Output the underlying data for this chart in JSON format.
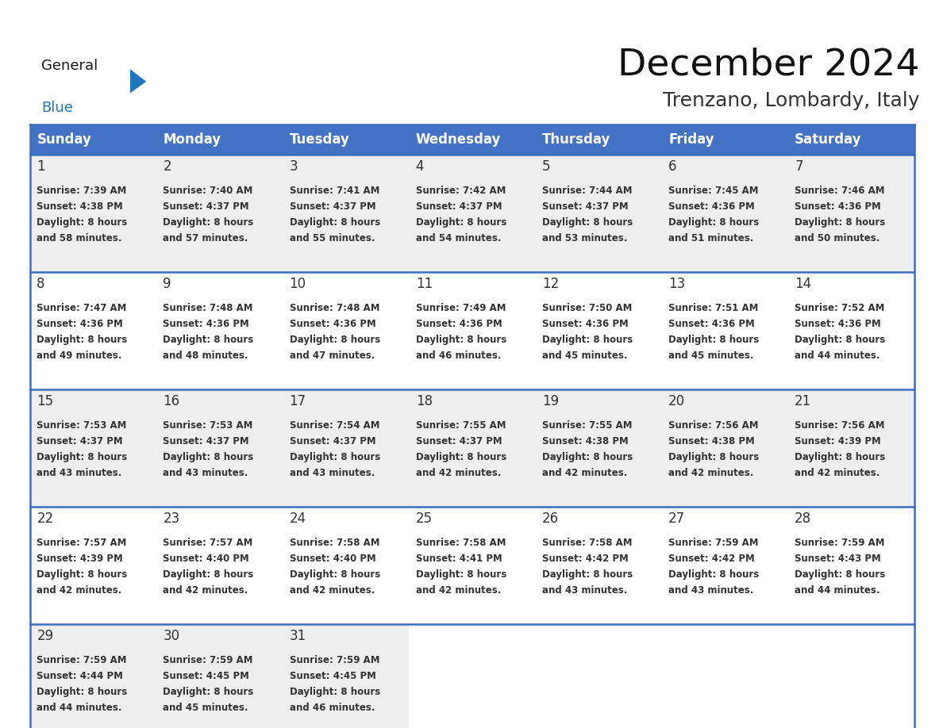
{
  "title": "December 2024",
  "subtitle": "Trenzano, Lombardy, Italy",
  "header_bg": "#4472C4",
  "header_text_color": "#FFFFFF",
  "header_font_size": 12,
  "day_names": [
    "Sunday",
    "Monday",
    "Tuesday",
    "Wednesday",
    "Thursday",
    "Friday",
    "Saturday"
  ],
  "title_font_size": 34,
  "subtitle_font_size": 18,
  "cell_bg_row0": "#EEEEEE",
  "cell_bg_row1": "#FFFFFF",
  "cell_bg_row2": "#EEEEEE",
  "cell_bg_row3": "#FFFFFF",
  "cell_bg_row4": "#EEEEEE",
  "border_color": "#3A6EBF",
  "text_color": "#333333",
  "day_num_fontsize": 12,
  "info_fontsize": 8.5,
  "days": [
    {
      "day": 1,
      "col": 0,
      "row": 0,
      "sunrise": "7:39 AM",
      "sunset": "4:38 PM",
      "daylight_min": "58 minutes."
    },
    {
      "day": 2,
      "col": 1,
      "row": 0,
      "sunrise": "7:40 AM",
      "sunset": "4:37 PM",
      "daylight_min": "57 minutes."
    },
    {
      "day": 3,
      "col": 2,
      "row": 0,
      "sunrise": "7:41 AM",
      "sunset": "4:37 PM",
      "daylight_min": "55 minutes."
    },
    {
      "day": 4,
      "col": 3,
      "row": 0,
      "sunrise": "7:42 AM",
      "sunset": "4:37 PM",
      "daylight_min": "54 minutes."
    },
    {
      "day": 5,
      "col": 4,
      "row": 0,
      "sunrise": "7:44 AM",
      "sunset": "4:37 PM",
      "daylight_min": "53 minutes."
    },
    {
      "day": 6,
      "col": 5,
      "row": 0,
      "sunrise": "7:45 AM",
      "sunset": "4:36 PM",
      "daylight_min": "51 minutes."
    },
    {
      "day": 7,
      "col": 6,
      "row": 0,
      "sunrise": "7:46 AM",
      "sunset": "4:36 PM",
      "daylight_min": "50 minutes."
    },
    {
      "day": 8,
      "col": 0,
      "row": 1,
      "sunrise": "7:47 AM",
      "sunset": "4:36 PM",
      "daylight_min": "49 minutes."
    },
    {
      "day": 9,
      "col": 1,
      "row": 1,
      "sunrise": "7:48 AM",
      "sunset": "4:36 PM",
      "daylight_min": "48 minutes."
    },
    {
      "day": 10,
      "col": 2,
      "row": 1,
      "sunrise": "7:48 AM",
      "sunset": "4:36 PM",
      "daylight_min": "47 minutes."
    },
    {
      "day": 11,
      "col": 3,
      "row": 1,
      "sunrise": "7:49 AM",
      "sunset": "4:36 PM",
      "daylight_min": "46 minutes."
    },
    {
      "day": 12,
      "col": 4,
      "row": 1,
      "sunrise": "7:50 AM",
      "sunset": "4:36 PM",
      "daylight_min": "45 minutes."
    },
    {
      "day": 13,
      "col": 5,
      "row": 1,
      "sunrise": "7:51 AM",
      "sunset": "4:36 PM",
      "daylight_min": "45 minutes."
    },
    {
      "day": 14,
      "col": 6,
      "row": 1,
      "sunrise": "7:52 AM",
      "sunset": "4:36 PM",
      "daylight_min": "44 minutes."
    },
    {
      "day": 15,
      "col": 0,
      "row": 2,
      "sunrise": "7:53 AM",
      "sunset": "4:37 PM",
      "daylight_min": "43 minutes."
    },
    {
      "day": 16,
      "col": 1,
      "row": 2,
      "sunrise": "7:53 AM",
      "sunset": "4:37 PM",
      "daylight_min": "43 minutes."
    },
    {
      "day": 17,
      "col": 2,
      "row": 2,
      "sunrise": "7:54 AM",
      "sunset": "4:37 PM",
      "daylight_min": "43 minutes."
    },
    {
      "day": 18,
      "col": 3,
      "row": 2,
      "sunrise": "7:55 AM",
      "sunset": "4:37 PM",
      "daylight_min": "42 minutes."
    },
    {
      "day": 19,
      "col": 4,
      "row": 2,
      "sunrise": "7:55 AM",
      "sunset": "4:38 PM",
      "daylight_min": "42 minutes."
    },
    {
      "day": 20,
      "col": 5,
      "row": 2,
      "sunrise": "7:56 AM",
      "sunset": "4:38 PM",
      "daylight_min": "42 minutes."
    },
    {
      "day": 21,
      "col": 6,
      "row": 2,
      "sunrise": "7:56 AM",
      "sunset": "4:39 PM",
      "daylight_min": "42 minutes."
    },
    {
      "day": 22,
      "col": 0,
      "row": 3,
      "sunrise": "7:57 AM",
      "sunset": "4:39 PM",
      "daylight_min": "42 minutes."
    },
    {
      "day": 23,
      "col": 1,
      "row": 3,
      "sunrise": "7:57 AM",
      "sunset": "4:40 PM",
      "daylight_min": "42 minutes."
    },
    {
      "day": 24,
      "col": 2,
      "row": 3,
      "sunrise": "7:58 AM",
      "sunset": "4:40 PM",
      "daylight_min": "42 minutes."
    },
    {
      "day": 25,
      "col": 3,
      "row": 3,
      "sunrise": "7:58 AM",
      "sunset": "4:41 PM",
      "daylight_min": "42 minutes."
    },
    {
      "day": 26,
      "col": 4,
      "row": 3,
      "sunrise": "7:58 AM",
      "sunset": "4:42 PM",
      "daylight_min": "43 minutes."
    },
    {
      "day": 27,
      "col": 5,
      "row": 3,
      "sunrise": "7:59 AM",
      "sunset": "4:42 PM",
      "daylight_min": "43 minutes."
    },
    {
      "day": 28,
      "col": 6,
      "row": 3,
      "sunrise": "7:59 AM",
      "sunset": "4:43 PM",
      "daylight_min": "44 minutes."
    },
    {
      "day": 29,
      "col": 0,
      "row": 4,
      "sunrise": "7:59 AM",
      "sunset": "4:44 PM",
      "daylight_min": "44 minutes."
    },
    {
      "day": 30,
      "col": 1,
      "row": 4,
      "sunrise": "7:59 AM",
      "sunset": "4:45 PM",
      "daylight_min": "45 minutes."
    },
    {
      "day": 31,
      "col": 2,
      "row": 4,
      "sunrise": "7:59 AM",
      "sunset": "4:45 PM",
      "daylight_min": "46 minutes."
    }
  ],
  "logo_general_color": "#1a1a1a",
  "logo_blue_color": "#2175bc",
  "logo_triangle_color": "#2175bc"
}
